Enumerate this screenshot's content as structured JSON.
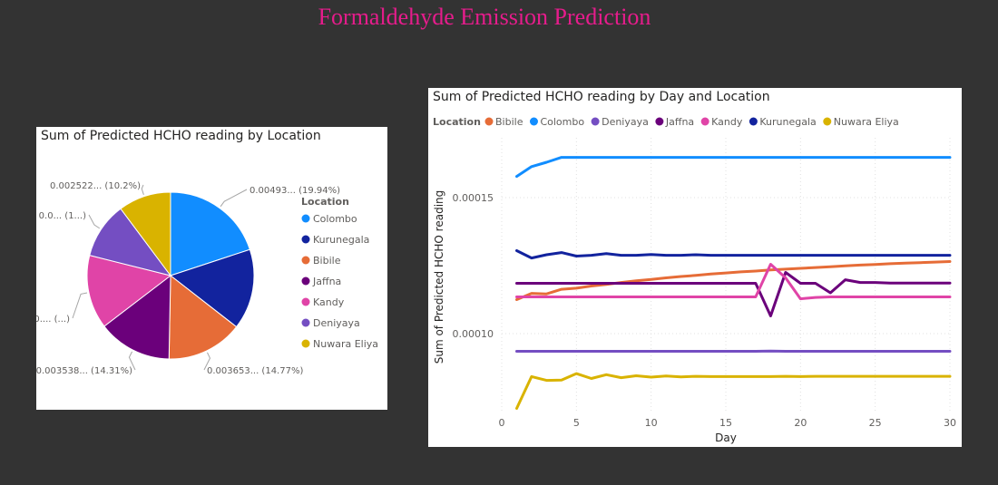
{
  "page": {
    "title": "Formaldehyde Emission Prediction"
  },
  "colors": {
    "Colombo": "#118dff",
    "Kurunegala": "#12239e",
    "Bibile": "#e66c37",
    "Jaffna": "#6b007b",
    "Kandy": "#e044a7",
    "Deniyaya": "#744ec2",
    "Nuwara Eliya": "#d9b300"
  },
  "chart_data": [
    {
      "type": "pie",
      "title": "Sum of Predicted HCHO reading by Location",
      "legend_title": "Location",
      "legend_position": "right",
      "slices": [
        {
          "label": "Colombo",
          "percent": 19.94,
          "data_label": "0.00493... (19.94%)"
        },
        {
          "label": "Kurunegala",
          "percent": 15.6,
          "data_label": ""
        },
        {
          "label": "Bibile",
          "percent": 14.77,
          "data_label": "0.003653... (14.77%)"
        },
        {
          "label": "Jaffna",
          "percent": 14.31,
          "data_label": "0.003538... (14.31%)"
        },
        {
          "label": "Kandy",
          "percent": 14.3,
          "data_label": "0.... (...)"
        },
        {
          "label": "Deniyaya",
          "percent": 10.9,
          "data_label": "0.0... (1...)"
        },
        {
          "label": "Nuwara Eliya",
          "percent": 10.2,
          "data_label": "0.002522... (10.2%)"
        }
      ]
    },
    {
      "type": "line",
      "title": "Sum of Predicted HCHO reading by Day and Location",
      "legend_title": "Location",
      "legend_position": "top-left",
      "xlabel": "Day",
      "ylabel": "Sum of Predicted HCHO reading",
      "xlim": [
        0,
        30
      ],
      "ylim": [
        7.1e-05,
        0.000172
      ],
      "xticks": [
        0,
        5,
        10,
        15,
        20,
        25,
        30
      ],
      "yticks": [
        0.0001,
        0.00015
      ],
      "ytick_labels": [
        "0.00010",
        "0.00015"
      ],
      "grid": true,
      "x": [
        1,
        2,
        3,
        4,
        5,
        6,
        7,
        8,
        9,
        10,
        11,
        12,
        13,
        14,
        15,
        16,
        17,
        18,
        19,
        20,
        21,
        22,
        23,
        24,
        25,
        26,
        27,
        28,
        29,
        30
      ],
      "series": [
        {
          "name": "Bibile",
          "values": [
            0.0001125,
            0.0001148,
            0.0001146,
            0.0001163,
            0.0001167,
            0.0001175,
            0.0001181,
            0.0001188,
            0.0001194,
            0.0001199,
            0.0001205,
            0.000121,
            0.0001214,
            0.0001219,
            0.0001223,
            0.0001227,
            0.000123,
            0.0001234,
            0.0001237,
            0.000124,
            0.0001243,
            0.0001246,
            0.0001249,
            0.0001252,
            0.0001254,
            0.0001257,
            0.0001259,
            0.0001261,
            0.0001263,
            0.0001265
          ]
        },
        {
          "name": "Colombo",
          "values": [
            0.0001578,
            0.0001614,
            0.000163,
            0.0001648,
            0.0001648,
            0.0001648,
            0.0001648,
            0.0001648,
            0.0001648,
            0.0001648,
            0.0001648,
            0.0001648,
            0.0001648,
            0.0001648,
            0.0001648,
            0.0001648,
            0.0001648,
            0.0001648,
            0.0001648,
            0.0001648,
            0.0001648,
            0.0001648,
            0.0001648,
            0.0001648,
            0.0001648,
            0.0001648,
            0.0001648,
            0.0001648,
            0.0001648,
            0.0001648
          ]
        },
        {
          "name": "Deniyaya",
          "values": [
            9.35e-05,
            9.35e-05,
            9.35e-05,
            9.35e-05,
            9.35e-05,
            9.35e-05,
            9.35e-05,
            9.35e-05,
            9.35e-05,
            9.35e-05,
            9.35e-05,
            9.35e-05,
            9.35e-05,
            9.35e-05,
            9.35e-05,
            9.35e-05,
            9.35e-05,
            9.36e-05,
            9.35e-05,
            9.35e-05,
            9.35e-05,
            9.35e-05,
            9.35e-05,
            9.35e-05,
            9.35e-05,
            9.35e-05,
            9.35e-05,
            9.35e-05,
            9.35e-05,
            9.35e-05
          ]
        },
        {
          "name": "Jaffna",
          "values": [
            0.0001185,
            0.0001185,
            0.0001185,
            0.0001185,
            0.0001185,
            0.0001185,
            0.0001185,
            0.0001185,
            0.0001185,
            0.0001185,
            0.0001185,
            0.0001185,
            0.0001185,
            0.0001185,
            0.0001185,
            0.0001185,
            0.0001185,
            0.0001065,
            0.0001225,
            0.0001185,
            0.0001185,
            0.000115,
            0.0001198,
            0.0001188,
            0.0001188,
            0.0001186,
            0.0001186,
            0.0001186,
            0.0001186,
            0.0001186
          ]
        },
        {
          "name": "Kandy",
          "values": [
            0.0001135,
            0.0001135,
            0.0001135,
            0.0001135,
            0.0001135,
            0.0001135,
            0.0001135,
            0.0001135,
            0.0001135,
            0.0001135,
            0.0001135,
            0.0001135,
            0.0001135,
            0.0001135,
            0.0001135,
            0.0001135,
            0.0001135,
            0.0001255,
            0.0001205,
            0.0001128,
            0.0001133,
            0.0001135,
            0.0001135,
            0.0001135,
            0.0001135,
            0.0001135,
            0.0001135,
            0.0001135,
            0.0001135,
            0.0001135
          ]
        },
        {
          "name": "Kurunegala",
          "values": [
            0.0001305,
            0.0001278,
            0.000129,
            0.0001298,
            0.0001285,
            0.0001288,
            0.0001294,
            0.0001288,
            0.0001288,
            0.0001291,
            0.0001288,
            0.0001288,
            0.000129,
            0.0001288,
            0.0001288,
            0.0001288,
            0.0001288,
            0.0001288,
            0.0001288,
            0.0001288,
            0.0001288,
            0.0001288,
            0.0001288,
            0.0001288,
            0.0001288,
            0.0001288,
            0.0001288,
            0.0001288,
            0.0001288,
            0.0001288
          ]
        },
        {
          "name": "Nuwara Eliya",
          "values": [
            7.25e-05,
            8.42e-05,
            8.28e-05,
            8.29e-05,
            8.53e-05,
            8.35e-05,
            8.49e-05,
            8.38e-05,
            8.45e-05,
            8.4e-05,
            8.44e-05,
            8.41e-05,
            8.43e-05,
            8.42e-05,
            8.42e-05,
            8.42e-05,
            8.42e-05,
            8.42e-05,
            8.43e-05,
            8.42e-05,
            8.43e-05,
            8.43e-05,
            8.43e-05,
            8.43e-05,
            8.43e-05,
            8.43e-05,
            8.43e-05,
            8.43e-05,
            8.43e-05,
            8.43e-05
          ]
        }
      ]
    }
  ]
}
